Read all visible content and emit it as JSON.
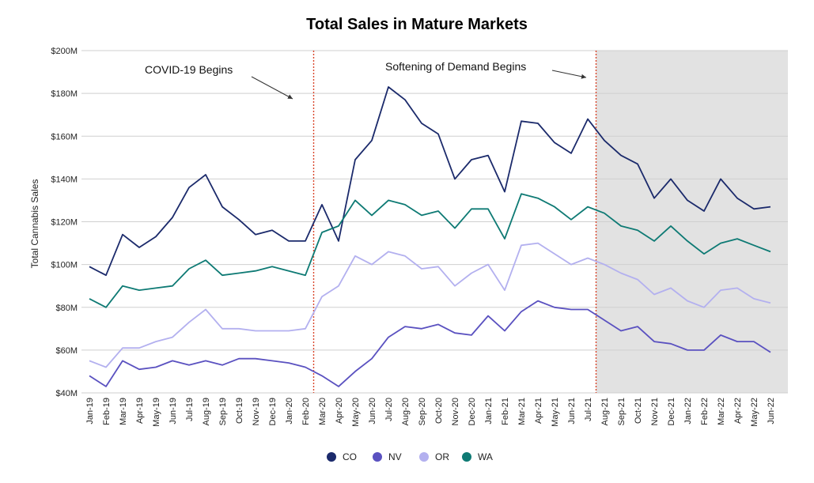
{
  "chart_data": {
    "type": "line",
    "title": "Total Sales in Mature Markets",
    "ylabel": "Total Cannabis Sales",
    "xlabel": "",
    "ylim": [
      40,
      200
    ],
    "yticks": [
      40,
      60,
      80,
      100,
      120,
      140,
      160,
      180,
      200
    ],
    "ytick_labels": [
      "$40M",
      "$60M",
      "$80M",
      "$100M",
      "$120M",
      "$140M",
      "$160M",
      "$180M",
      "$200M"
    ],
    "grid": true,
    "legend_position": "bottom-center",
    "categories": [
      "Jan-19",
      "Feb-19",
      "Mar-19",
      "Apr-19",
      "May-19",
      "Jun-19",
      "Jul-19",
      "Aug-19",
      "Sep-19",
      "Oct-19",
      "Nov-19",
      "Dec-19",
      "Jan-20",
      "Feb-20",
      "Mar-20",
      "Apr-20",
      "May-20",
      "Jun-20",
      "Jul-20",
      "Aug-20",
      "Sep-20",
      "Oct-20",
      "Nov-20",
      "Dec-20",
      "Jan-21",
      "Feb-21",
      "Mar-21",
      "Apr-21",
      "May-21",
      "Jun-21",
      "Jul-21",
      "Aug-21",
      "Sep-21",
      "Oct-21",
      "Nov-21",
      "Dec-21",
      "Jan-22",
      "Feb-22",
      "Mar-22",
      "Apr-22",
      "May-22",
      "Jun-22"
    ],
    "series": [
      {
        "name": "CO",
        "color": "#1b2a6b",
        "values": [
          99,
          95,
          114,
          108,
          113,
          122,
          136,
          142,
          127,
          121,
          114,
          116,
          111,
          111,
          128,
          111,
          149,
          158,
          183,
          177,
          166,
          161,
          140,
          149,
          151,
          134,
          167,
          166,
          157,
          152,
          168,
          158,
          151,
          147,
          131,
          140,
          130,
          125,
          140,
          131,
          126,
          127
        ]
      },
      {
        "name": "NV",
        "color": "#5a51c0",
        "values": [
          48,
          43,
          55,
          51,
          52,
          55,
          53,
          55,
          53,
          56,
          56,
          55,
          54,
          52,
          48,
          43,
          50,
          56,
          66,
          71,
          70,
          72,
          68,
          67,
          76,
          69,
          78,
          83,
          80,
          79,
          79,
          74,
          69,
          71,
          64,
          63,
          60,
          60,
          67,
          64,
          64,
          59
        ]
      },
      {
        "name": "OR",
        "color": "#b3b0ef",
        "values": [
          55,
          52,
          61,
          61,
          64,
          66,
          73,
          79,
          70,
          70,
          69,
          69,
          69,
          70,
          85,
          90,
          104,
          100,
          106,
          104,
          98,
          99,
          90,
          96,
          100,
          88,
          109,
          110,
          105,
          100,
          103,
          100,
          96,
          93,
          86,
          89,
          83,
          80,
          88,
          89,
          84,
          82
        ]
      },
      {
        "name": "WA",
        "color": "#0e7a74",
        "values": [
          84,
          80,
          90,
          88,
          89,
          90,
          98,
          102,
          95,
          96,
          97,
          99,
          97,
          95,
          115,
          118,
          130,
          123,
          130,
          128,
          123,
          125,
          117,
          126,
          126,
          112,
          133,
          131,
          127,
          121,
          127,
          124,
          118,
          116,
          111,
          118,
          111,
          105,
          110,
          112,
          109,
          106
        ]
      }
    ],
    "vlines": [
      {
        "after_category": "Feb-20",
        "color": "#d9452b"
      },
      {
        "after_category": "Jul-21",
        "color": "#d9452b"
      }
    ],
    "shaded_region": {
      "from_category": "Jul-21",
      "to_category": "Jun-22",
      "color": "#e2e2e2"
    },
    "annotations": [
      {
        "text": "COVID-19 Begins"
      },
      {
        "text": "Softening of Demand Begins"
      }
    ]
  }
}
